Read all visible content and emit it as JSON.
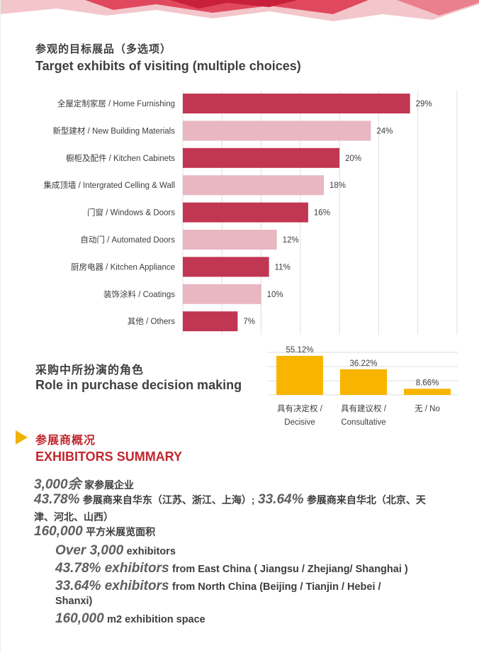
{
  "colors": {
    "bar_dark": "#c13652",
    "bar_light": "#e8b7c2",
    "bar_yellow": "#f7b500",
    "heading_red": "#c0272d",
    "arrow_yellow": "#f1b100",
    "text_dark": "#3d3d3d",
    "stat_grey": "#5e5e5e"
  },
  "exhibits": {
    "title_cn": "参观的目标展品（多选项）",
    "title_en": "Target exhibits of visiting (multiple choices)"
  },
  "roles": {
    "title_cn": "采购中所扮演的角色",
    "title_en": "Role in purchase decision making"
  },
  "chart_data": [
    {
      "type": "bar",
      "orientation": "horizontal",
      "categories": [
        "全屋定制家居 / Home Furnishing",
        "新型建材 / New Building Materials",
        "橱柜及配件 / Kitchen Cabinets",
        "集成顶墙 / Intergrated Celling & Wall",
        "门窗 / Windows & Doors",
        "自动门 / Automated Doors",
        "厨房电器 / Kitchen Appliance",
        "装饰涂料 / Coatings",
        "其他 / Others"
      ],
      "values": [
        29,
        24,
        20,
        18,
        16,
        12,
        11,
        10,
        7
      ],
      "value_labels": [
        "29%",
        "24%",
        "20%",
        "18%",
        "16%",
        "12%",
        "11%",
        "10%",
        "7%"
      ],
      "unit": "%",
      "xlim": [
        0,
        35
      ],
      "grid": "vertical gridlines",
      "bar_colors": "alternating dark red / light pink"
    },
    {
      "type": "bar",
      "orientation": "vertical",
      "categories": [
        "具有决定权 / Decisive",
        "具有建议权 / Consultative",
        "无 / No"
      ],
      "category_lines": [
        [
          "具有决定权 /",
          "Decisive"
        ],
        [
          "具有建议权 /",
          "Consultative"
        ],
        [
          "无 / No"
        ]
      ],
      "values": [
        55.12,
        36.22,
        8.66
      ],
      "value_labels": [
        "55.12%",
        "36.22%",
        "8.66%"
      ],
      "unit": "%",
      "ylim": [
        0,
        60
      ],
      "grid": "horizontal gridlines"
    }
  ],
  "summary": {
    "title_cn": "参展商概况",
    "title_en": "EXHIBITORS SUMMARY",
    "cn_line1_num": "3,000余",
    "cn_line1_text": "家参展企业",
    "cn_line2_num_a": "43.78%",
    "cn_line2_text_a": "参展商来自华东（江苏、浙江、上海）;",
    "cn_line2_num_b": "33.64%",
    "cn_line2_text_b": "参展商来自华北（北京、天",
    "cn_line2_cont": "津、河北、山西）",
    "cn_line3_num": "160,000",
    "cn_line3_text": "平方米展览面积",
    "en_line1_num": "Over 3,000",
    "en_line1_text": "exhibitors",
    "en_line2_num": "43.78% exhibitors",
    "en_line2_text": "from East China ( Jiangsu / Zhejiang/ Shanghai )",
    "en_line3_num": "33.64% exhibitors",
    "en_line3_text": "from North China (Beijing / Tianjin / Hebei /",
    "en_line3_cont": "Shanxi)",
    "en_line4_num": "160,000",
    "en_line4_text": "m2 exhibition space"
  }
}
